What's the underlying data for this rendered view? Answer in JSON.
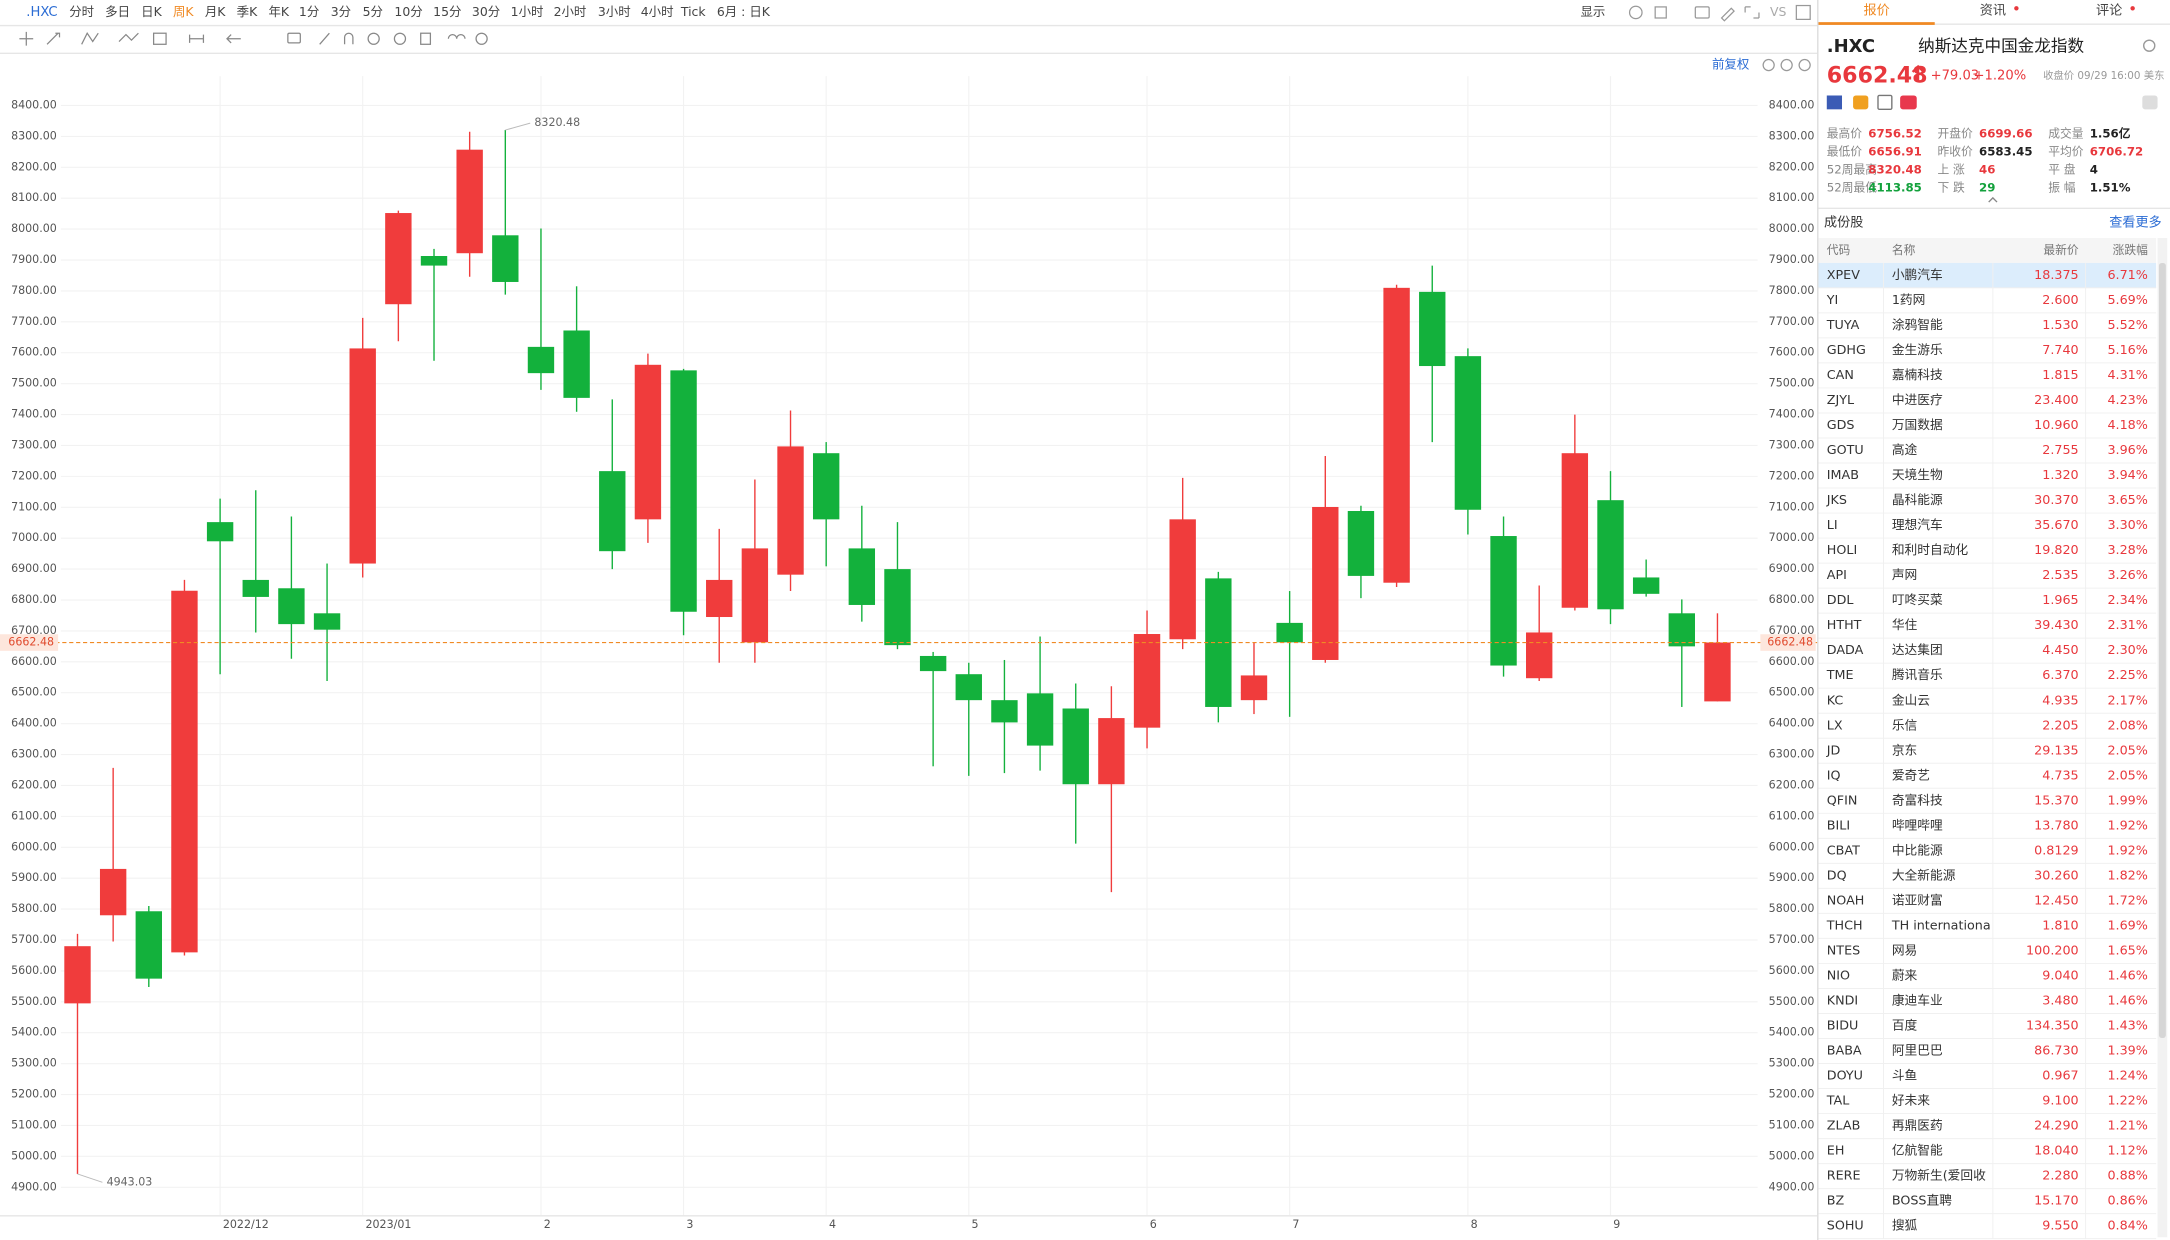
{
  "toolbar": {
    "symbol": ".HXC",
    "periods": [
      {
        "label": "分时"
      },
      {
        "label": "多日"
      },
      {
        "label": "日K"
      },
      {
        "label": "周K",
        "color": "#f08a24"
      },
      {
        "label": "月K"
      },
      {
        "label": "季K"
      },
      {
        "label": "年K"
      },
      {
        "label": "1分"
      },
      {
        "label": "3分"
      },
      {
        "label": "5分"
      },
      {
        "label": "10分"
      },
      {
        "label": "15分"
      },
      {
        "label": "30分"
      },
      {
        "label": "1小时"
      },
      {
        "label": "2小时"
      },
      {
        "label": "3小时"
      },
      {
        "label": "4小时"
      },
      {
        "label": "Tick"
      },
      {
        "label": "6月 : 日K"
      }
    ],
    "display": "显示",
    "vs": "VS",
    "adjust": "前复权"
  },
  "chart_data": {
    "type": "candlestick",
    "categories": [
      null,
      null,
      null,
      null,
      "2022/12",
      null,
      null,
      null,
      "2023/01",
      null,
      null,
      null,
      null,
      "2",
      null,
      null,
      null,
      "3",
      null,
      null,
      null,
      "4",
      null,
      null,
      null,
      "5",
      null,
      null,
      null,
      null,
      "6",
      null,
      null,
      null,
      "7",
      null,
      null,
      null,
      null,
      "8",
      null,
      null,
      null,
      "9",
      null,
      null,
      null
    ],
    "open": [
      5495,
      5780,
      5793,
      5660,
      7052,
      6865,
      6838,
      6757,
      6918,
      7757,
      7913,
      7922,
      7980,
      7619,
      7672,
      7217,
      7061,
      7543,
      6745,
      6663,
      6882,
      7275,
      6967,
      6900,
      6619,
      6560,
      6476,
      6498,
      6449,
      6204,
      6387,
      6673,
      6870,
      6476,
      6726,
      6606,
      7088,
      6856,
      7797,
      7589,
      7007,
      6547,
      6775,
      7123,
      6873,
      6757,
      6472
    ],
    "high": [
      5720,
      6257,
      5810,
      6865,
      7128,
      7155,
      7070,
      6918,
      7713,
      8060,
      7936,
      8315,
      8320.48,
      8002,
      7815,
      7449,
      7597,
      7548,
      7030,
      7190,
      7413,
      7311,
      7105,
      7052,
      6632,
      6597,
      6606,
      6682,
      6530,
      6521,
      6766,
      7195,
      6891,
      6663,
      6829,
      7266,
      7105,
      7820,
      7882,
      7614,
      7070,
      6847,
      7400,
      7217,
      6931,
      6802,
      6757
    ],
    "low": [
      4943.03,
      5695,
      5548,
      5650,
      6560,
      6695,
      6610,
      6538,
      6873,
      7637,
      7574,
      7846,
      7788,
      7480,
      7409,
      6900,
      6985,
      6686,
      6597,
      6597,
      6829,
      6909,
      6730,
      6641,
      6262,
      6231,
      6240,
      6248,
      6012,
      5855,
      6320,
      6641,
      6404,
      6431,
      6422,
      6597,
      6806,
      6842,
      7311,
      7012,
      6552,
      6538,
      6766,
      6722,
      6811,
      6454,
      6472
    ],
    "close": [
      5680,
      5930,
      5575,
      6830,
      6990,
      6810,
      6722,
      6704,
      7614,
      8052,
      7882,
      8257,
      7829,
      7534,
      7454,
      6958,
      7561,
      6762,
      6865,
      6967,
      7297,
      7061,
      6784,
      6654,
      6570,
      6476,
      6404,
      6329,
      6204,
      6418,
      6690,
      7061,
      6454,
      6556,
      6663,
      7101,
      6878,
      7810,
      7557,
      7092,
      6588,
      6695,
      7275,
      6770,
      6820,
      6650,
      6662.48
    ],
    "ylim": [
      4810,
      8495
    ],
    "yticks": [
      {
        "value": 4900,
        "label": "4900.00"
      },
      {
        "value": 5000,
        "label": "5000.00"
      },
      {
        "value": 5100,
        "label": "5100.00"
      },
      {
        "value": 5200,
        "label": "5200.00"
      },
      {
        "value": 5300,
        "label": "5300.00"
      },
      {
        "value": 5400,
        "label": "5400.00"
      },
      {
        "value": 5500,
        "label": "5500.00"
      },
      {
        "value": 5600,
        "label": "5600.00"
      },
      {
        "value": 5700,
        "label": "5700.00"
      },
      {
        "value": 5800,
        "label": "5800.00"
      },
      {
        "value": 5900,
        "label": "5900.00"
      },
      {
        "value": 6000,
        "label": "6000.00"
      },
      {
        "value": 6100,
        "label": "6100.00"
      },
      {
        "value": 6200,
        "label": "6200.00"
      },
      {
        "value": 6300,
        "label": "6300.00"
      },
      {
        "value": 6400,
        "label": "6400.00"
      },
      {
        "value": 6500,
        "label": "6500.00"
      },
      {
        "value": 6600,
        "label": "6600.00"
      },
      {
        "value": 6700,
        "label": "6700.00"
      },
      {
        "value": 6800,
        "label": "6800.00"
      },
      {
        "value": 6900,
        "label": "6900.00"
      },
      {
        "value": 7000,
        "label": "7000.00"
      },
      {
        "value": 7100,
        "label": "7100.00"
      },
      {
        "value": 7200,
        "label": "7200.00"
      },
      {
        "value": 7300,
        "label": "7300.00"
      },
      {
        "value": 7400,
        "label": "7400.00"
      },
      {
        "value": 7500,
        "label": "7500.00"
      },
      {
        "value": 7600,
        "label": "7600.00"
      },
      {
        "value": 7700,
        "label": "7700.00"
      },
      {
        "value": 7800,
        "label": "7800.00"
      },
      {
        "value": 7900,
        "label": "7900.00"
      },
      {
        "value": 8000,
        "label": "8000.00"
      },
      {
        "value": 8100,
        "label": "8100.00"
      },
      {
        "value": 8200,
        "label": "8200.00"
      },
      {
        "value": 8300,
        "label": "8300.00"
      },
      {
        "value": 8400,
        "label": "8400.00"
      }
    ],
    "grid": true,
    "up_color": "#f03c3c",
    "down_color": "#13b13c",
    "last_price": 6662.48,
    "last_price_color": "#f08a24"
  },
  "quote": {
    "tabs": [
      "报价",
      "资讯",
      "评论"
    ],
    "symbol": ".HXC",
    "name": "纳斯达克中国金龙指数",
    "price": "6662.48",
    "change": "+79.03",
    "change_pct": "+1.20%",
    "status": "收盘价 09/29 16:00 美东",
    "stats": [
      [
        {
          "label": "最高价",
          "value": "6756.52",
          "color": "#e8383d"
        },
        {
          "label": "开盘价",
          "value": "6699.66",
          "color": "#e8383d"
        },
        {
          "label": "成交量",
          "value": "1.56亿",
          "color": "#222"
        }
      ],
      [
        {
          "label": "最低价",
          "value": "6656.91",
          "color": "#e8383d"
        },
        {
          "label": "昨收价",
          "value": "6583.45",
          "color": "#222"
        },
        {
          "label": "平均价",
          "value": "6706.72",
          "color": "#e8383d"
        }
      ],
      [
        {
          "label": "52周最高",
          "value": "8320.48",
          "color": "#e8383d"
        },
        {
          "label": "上 涨",
          "value": "46",
          "color": "#e8383d"
        },
        {
          "label": "平 盘",
          "value": "4",
          "color": "#222"
        }
      ],
      [
        {
          "label": "52周最低",
          "value": "4113.85",
          "color": "#13a13c"
        },
        {
          "label": "下 跌",
          "value": "29",
          "color": "#13a13c"
        },
        {
          "label": "振 幅",
          "value": "1.51%",
          "color": "#222"
        }
      ]
    ]
  },
  "constituents": {
    "title": "成份股",
    "more": "查看更多",
    "columns": [
      "代码",
      "名称",
      "最新价",
      "涨跌幅"
    ],
    "rows": [
      [
        "XPEV",
        "小鹏汽车",
        "18.375",
        "6.71%"
      ],
      [
        "YI",
        "1药网",
        "2.600",
        "5.69%"
      ],
      [
        "TUYA",
        "涂鸦智能",
        "1.530",
        "5.52%"
      ],
      [
        "GDHG",
        "金生游乐",
        "7.740",
        "5.16%"
      ],
      [
        "CAN",
        "嘉楠科技",
        "1.815",
        "4.31%"
      ],
      [
        "ZJYL",
        "中进医疗",
        "23.400",
        "4.23%"
      ],
      [
        "GDS",
        "万国数据",
        "10.960",
        "4.18%"
      ],
      [
        "GOTU",
        "高途",
        "2.755",
        "3.96%"
      ],
      [
        "IMAB",
        "天境生物",
        "1.320",
        "3.94%"
      ],
      [
        "JKS",
        "晶科能源",
        "30.370",
        "3.65%"
      ],
      [
        "LI",
        "理想汽车",
        "35.670",
        "3.30%"
      ],
      [
        "HOLI",
        "和利时自动化",
        "19.820",
        "3.28%"
      ],
      [
        "API",
        "声网",
        "2.535",
        "3.26%"
      ],
      [
        "DDL",
        "叮咚买菜",
        "1.965",
        "2.34%"
      ],
      [
        "HTHT",
        "华住",
        "39.430",
        "2.31%"
      ],
      [
        "DADA",
        "达达集团",
        "4.450",
        "2.30%"
      ],
      [
        "TME",
        "腾讯音乐",
        "6.370",
        "2.25%"
      ],
      [
        "KC",
        "金山云",
        "4.935",
        "2.17%"
      ],
      [
        "LX",
        "乐信",
        "2.205",
        "2.08%"
      ],
      [
        "JD",
        "京东",
        "29.135",
        "2.05%"
      ],
      [
        "IQ",
        "爱奇艺",
        "4.735",
        "2.05%"
      ],
      [
        "QFIN",
        "奇富科技",
        "15.370",
        "1.99%"
      ],
      [
        "BILI",
        "哔哩哔哩",
        "13.780",
        "1.92%"
      ],
      [
        "CBAT",
        "中比能源",
        "0.8129",
        "1.92%"
      ],
      [
        "DQ",
        "大全新能源",
        "30.260",
        "1.82%"
      ],
      [
        "NOAH",
        "诺亚财富",
        "12.450",
        "1.72%"
      ],
      [
        "THCH",
        "TH internationa",
        "1.810",
        "1.69%"
      ],
      [
        "NTES",
        "网易",
        "100.200",
        "1.65%"
      ],
      [
        "NIO",
        "蔚来",
        "9.040",
        "1.46%"
      ],
      [
        "KNDI",
        "康迪车业",
        "3.480",
        "1.46%"
      ],
      [
        "BIDU",
        "百度",
        "134.350",
        "1.43%"
      ],
      [
        "BABA",
        "阿里巴巴",
        "86.730",
        "1.39%"
      ],
      [
        "DOYU",
        "斗鱼",
        "0.967",
        "1.24%"
      ],
      [
        "TAL",
        "好未来",
        "9.100",
        "1.22%"
      ],
      [
        "ZLAB",
        "再鼎医药",
        "24.290",
        "1.21%"
      ],
      [
        "EH",
        "亿航智能",
        "18.040",
        "1.12%"
      ],
      [
        "RERE",
        "万物新生(爱回收",
        "2.280",
        "0.88%"
      ],
      [
        "BZ",
        "BOSS直聘",
        "15.170",
        "0.86%"
      ],
      [
        "SOHU",
        "搜狐",
        "9.550",
        "0.84%"
      ]
    ]
  }
}
